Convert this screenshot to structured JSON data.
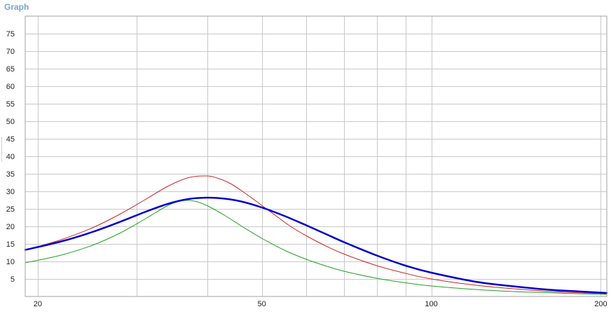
{
  "panel": {
    "title": "Graph"
  },
  "chart_data": {
    "type": "line",
    "title": "",
    "xlabel": "",
    "ylabel": "",
    "xscale": "log",
    "xlim": [
      19,
      205
    ],
    "ylim": [
      0,
      80
    ],
    "x_ticks": [
      20,
      50,
      100,
      200
    ],
    "y_ticks": [
      5,
      10,
      15,
      20,
      25,
      30,
      35,
      40,
      45,
      50,
      55,
      60,
      65,
      70,
      75
    ],
    "grid": true,
    "legend": "none",
    "series": [
      {
        "color": "#cc2222",
        "width": 1,
        "x": [
          19,
          22,
          25,
          28,
          31,
          34,
          37,
          40,
          42,
          44,
          46,
          48,
          50,
          53,
          56,
          60,
          65,
          70,
          80,
          90,
          100,
          120,
          140,
          160,
          180,
          205
        ],
        "y": [
          13.2,
          16.2,
          19.6,
          23.5,
          27.6,
          31.4,
          33.9,
          34.4,
          33.6,
          32.2,
          30.2,
          28.1,
          26.0,
          23.0,
          20.2,
          17.3,
          14.4,
          12.1,
          8.8,
          6.6,
          5.0,
          3.2,
          2.2,
          1.5,
          1.1,
          0.8
        ]
      },
      {
        "color": "#22a022",
        "width": 1,
        "x": [
          19,
          22,
          25,
          28,
          31,
          34,
          36,
          38,
          40,
          43,
          46,
          50,
          55,
          60,
          65,
          70,
          80,
          90,
          100,
          120,
          140,
          160,
          180,
          205
        ],
        "y": [
          9.6,
          11.8,
          14.6,
          18.1,
          22.1,
          25.9,
          27.3,
          27.2,
          25.9,
          23.1,
          20.1,
          16.6,
          13.1,
          10.6,
          8.7,
          7.2,
          5.2,
          3.9,
          3.0,
          2.0,
          1.4,
          1.1,
          0.8,
          0.6
        ]
      },
      {
        "color": "#0000cc",
        "width": 2.5,
        "x": [
          19,
          22,
          25,
          28,
          31,
          34,
          37,
          40,
          43,
          46,
          50,
          55,
          60,
          65,
          70,
          80,
          90,
          100,
          120,
          140,
          160,
          180,
          205
        ],
        "y": [
          13.3,
          15.7,
          18.4,
          21.3,
          24.1,
          26.4,
          27.8,
          28.2,
          27.9,
          27.1,
          25.4,
          22.9,
          20.3,
          17.8,
          15.5,
          11.7,
          8.8,
          6.8,
          4.2,
          2.9,
          2.0,
          1.5,
          1.0
        ]
      }
    ]
  }
}
